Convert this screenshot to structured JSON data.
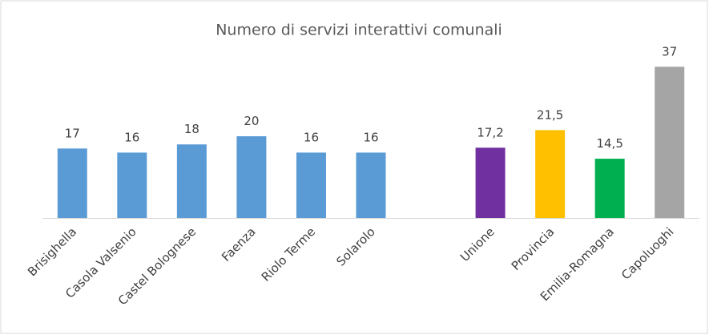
{
  "chart_data": {
    "type": "bar",
    "title": "Numero di servizi interattivi comunali",
    "categories": [
      "Brisighella",
      "Casola Valsenio",
      "Castel Bolognese",
      "Faenza",
      "Riolo Terme",
      "Solarolo",
      null,
      "Unione",
      "Provincia",
      "Emilia-Romagna",
      "Capoluoghi"
    ],
    "values": [
      17,
      16,
      18,
      20,
      16,
      16,
      null,
      17.2,
      21.5,
      14.5,
      37
    ],
    "value_labels": [
      "17",
      "16",
      "18",
      "20",
      "16",
      "16",
      null,
      "17,2",
      "21,5",
      "14,5",
      "37"
    ],
    "colors": [
      "#5b9bd5",
      "#5b9bd5",
      "#5b9bd5",
      "#5b9bd5",
      "#5b9bd5",
      "#5b9bd5",
      null,
      "#7030a0",
      "#ffc000",
      "#00b050",
      "#a5a5a5"
    ],
    "ylim": [
      0,
      40
    ]
  }
}
